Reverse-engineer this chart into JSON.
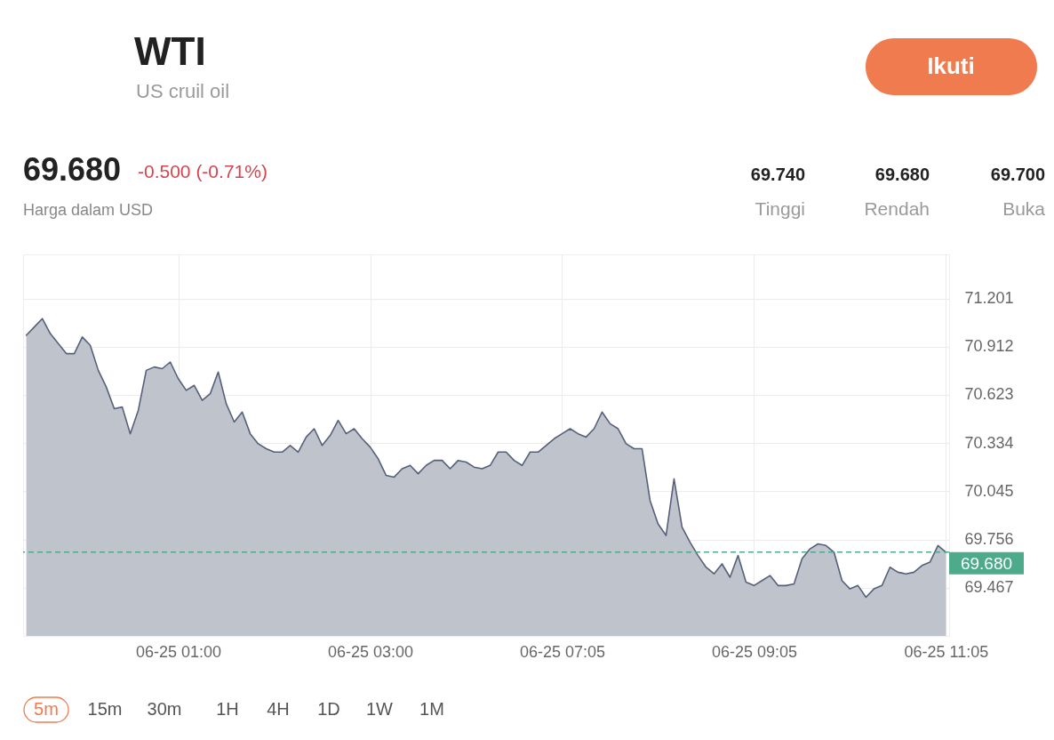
{
  "chart_data": {
    "type": "area",
    "title": "WTI",
    "subtitle": "US cruil oil",
    "categories": [
      null,
      null,
      null,
      null,
      null,
      null,
      null,
      null,
      null,
      null,
      null,
      null,
      null,
      null,
      null,
      null,
      null,
      null,
      null,
      "06-25 01:00",
      null,
      null,
      null,
      null,
      null,
      null,
      null,
      null,
      null,
      null,
      null,
      null,
      null,
      null,
      null,
      null,
      null,
      null,
      null,
      null,
      null,
      null,
      null,
      "06-25 03:00",
      null,
      null,
      null,
      null,
      null,
      null,
      null,
      null,
      null,
      null,
      null,
      null,
      null,
      null,
      null,
      null,
      null,
      null,
      null,
      null,
      null,
      null,
      null,
      "06-25 07:05",
      null,
      null,
      null,
      null,
      null,
      null,
      null,
      null,
      null,
      null,
      null,
      null,
      null,
      null,
      null,
      null,
      null,
      null,
      null,
      null,
      null,
      null,
      null,
      "06-25 09:05",
      null,
      null,
      null,
      null,
      null,
      null,
      null,
      null,
      null,
      null,
      null,
      null,
      null,
      null,
      null,
      null,
      null,
      null,
      null,
      null,
      null,
      null,
      null,
      "06-25 11:05"
    ],
    "values": [
      70.98,
      71.03,
      71.08,
      70.99,
      70.93,
      70.87,
      70.87,
      70.97,
      70.92,
      70.77,
      70.67,
      70.54,
      70.55,
      70.39,
      70.53,
      70.77,
      70.79,
      70.78,
      70.82,
      70.72,
      70.65,
      70.68,
      70.59,
      70.63,
      70.76,
      70.57,
      70.46,
      70.52,
      70.39,
      70.33,
      70.3,
      70.28,
      70.28,
      70.32,
      70.28,
      70.37,
      70.42,
      70.32,
      70.38,
      70.47,
      70.39,
      70.42,
      70.36,
      70.31,
      70.24,
      70.14,
      70.13,
      70.18,
      70.2,
      70.15,
      70.2,
      70.23,
      70.23,
      70.18,
      70.23,
      70.22,
      70.19,
      70.18,
      70.2,
      70.28,
      70.28,
      70.23,
      70.2,
      70.28,
      70.28,
      70.32,
      70.36,
      70.39,
      70.42,
      70.39,
      70.37,
      70.42,
      70.52,
      70.45,
      70.42,
      70.33,
      70.3,
      70.3,
      69.99,
      69.85,
      69.78,
      70.12,
      69.83,
      69.74,
      69.66,
      69.59,
      69.55,
      69.61,
      69.53,
      69.66,
      69.5,
      69.48,
      69.51,
      69.54,
      69.48,
      69.48,
      69.49,
      69.64,
      69.7,
      69.73,
      69.72,
      69.68,
      69.51,
      69.46,
      69.48,
      69.41,
      69.46,
      69.48,
      69.59,
      69.56,
      69.55,
      69.56,
      69.6,
      69.62,
      69.72,
      69.68
    ],
    "color": "#56607a",
    "ylim": [
      69.178,
      71.465
    ],
    "yticks": [
      71.201,
      70.912,
      70.623,
      70.334,
      70.045,
      69.756,
      69.467
    ],
    "grid": true,
    "ref_lines": [
      {
        "axis": "y",
        "value": 69.68,
        "label": "69.680",
        "color": "#4dab8c",
        "line_style": "dashed"
      }
    ],
    "annotations": [
      "69.680",
      "-0.500 (-0.71%)",
      "Harga dalam USD",
      "69.740",
      "Tinggi",
      "69.680",
      "Rendah",
      "69.700",
      "Buka",
      "Ikuti",
      "5m",
      "15m",
      "30m",
      "1H",
      "4H",
      "1D",
      "1W",
      "1M"
    ]
  }
}
